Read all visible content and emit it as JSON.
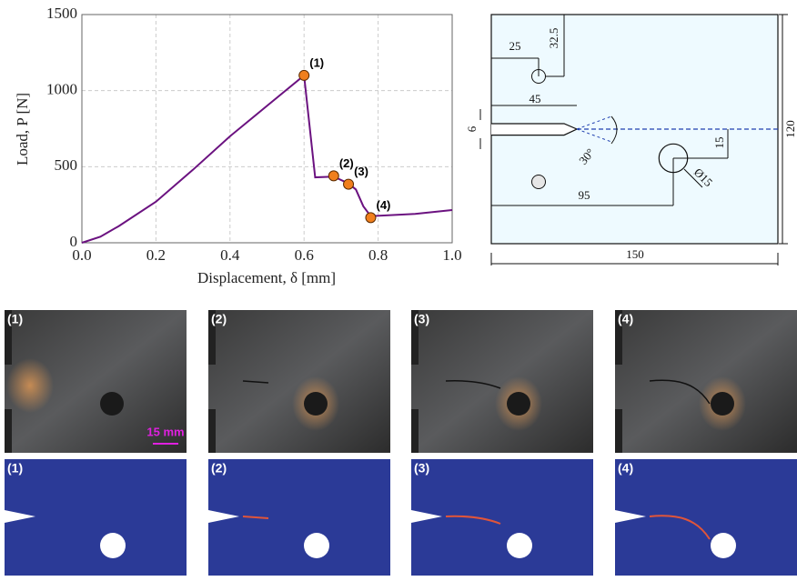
{
  "chart_data": {
    "type": "line",
    "xlabel": "Displacement, δ [mm]",
    "ylabel": "Load, P [N]",
    "x": [
      0,
      0.05,
      0.1,
      0.2,
      0.3,
      0.4,
      0.5,
      0.6,
      0.63,
      0.68,
      0.72,
      0.74,
      0.76,
      0.78,
      0.9,
      1.0
    ],
    "values": [
      0,
      40,
      110,
      270,
      480,
      700,
      900,
      1100,
      430,
      435,
      390,
      350,
      240,
      175,
      190,
      215
    ],
    "color": "#6b1280",
    "points": {
      "x": [
        0.6,
        0.68,
        0.72,
        0.78
      ],
      "values": [
        1100,
        440,
        385,
        165
      ],
      "labels": [
        "(1)",
        "(2)",
        "(3)",
        "(4)"
      ],
      "color": "#f07f1d"
    },
    "xlim": [
      0,
      1.0
    ],
    "ylim": [
      0,
      1500
    ],
    "xticks": [
      {
        "value": 0,
        "label": "0.0"
      },
      0.2,
      0.4,
      0.6,
      0.8,
      {
        "value": 1.0,
        "label": "1.0"
      }
    ],
    "yticks": [
      0,
      500,
      1000,
      1500
    ],
    "grid": true
  },
  "diagram": {
    "dimensions": [
      "25",
      "32.5",
      "45",
      "6",
      "30°",
      "15",
      "Ø15",
      "95",
      "120",
      "150"
    ]
  },
  "panels": {
    "labels": [
      "(1)",
      "(2)",
      "(3)",
      "(4)"
    ],
    "scale_bar": "15 mm"
  }
}
